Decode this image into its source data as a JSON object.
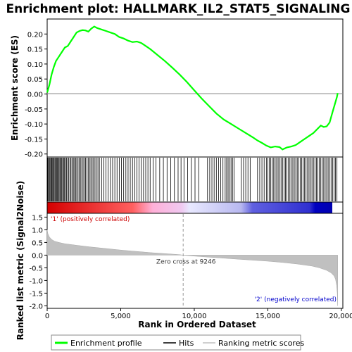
{
  "chart_data": {
    "type": "line",
    "title": "Enrichment plot: HALLMARK_IL2_STAT5_SIGNALING",
    "panels": {
      "enrichment": {
        "ylabel": "Enrichment score (ES)",
        "ylim": [
          -0.21,
          0.25
        ],
        "yticks": [
          "0.20",
          "0.15",
          "0.10",
          "0.05",
          "0.00",
          "-0.05",
          "-0.10",
          "-0.15",
          "-0.20"
        ],
        "ytick_values": [
          0.2,
          0.15,
          0.1,
          0.05,
          0.0,
          -0.05,
          -0.1,
          -0.15,
          -0.2
        ],
        "series": [
          {
            "name": "Enrichment profile",
            "color": "#00ff00",
            "x": [
              0,
              150,
              300,
              450,
              600,
              800,
              1000,
              1200,
              1400,
              1600,
              1800,
              2000,
              2200,
              2400,
              2600,
              2800,
              3000,
              3200,
              3400,
              3700,
              4000,
              4300,
              4600,
              4900,
              5200,
              5500,
              5800,
              6100,
              6400,
              6700,
              7000,
              7500,
              8000,
              8500,
              9000,
              9500,
              10000,
              10500,
              11000,
              11500,
              12000,
              12500,
              13000,
              13500,
              14000,
              14300,
              14600,
              14900,
              15200,
              15500,
              15800,
              16000,
              16300,
              16600,
              16900,
              17200,
              17500,
              17800,
              18100,
              18400,
              18600,
              18800,
              19000,
              19200,
              19400,
              19550,
              19700,
              19750
            ],
            "y": [
              0.005,
              0.03,
              0.065,
              0.09,
              0.11,
              0.125,
              0.14,
              0.155,
              0.16,
              0.175,
              0.19,
              0.205,
              0.21,
              0.213,
              0.212,
              0.208,
              0.218,
              0.225,
              0.22,
              0.215,
              0.21,
              0.205,
              0.2,
              0.19,
              0.185,
              0.178,
              0.173,
              0.175,
              0.17,
              0.16,
              0.15,
              0.13,
              0.11,
              0.088,
              0.065,
              0.04,
              0.012,
              -0.015,
              -0.04,
              -0.065,
              -0.085,
              -0.1,
              -0.115,
              -0.13,
              -0.145,
              -0.155,
              -0.163,
              -0.172,
              -0.178,
              -0.175,
              -0.177,
              -0.185,
              -0.178,
              -0.175,
              -0.17,
              -0.16,
              -0.15,
              -0.14,
              -0.13,
              -0.115,
              -0.105,
              -0.11,
              -0.108,
              -0.095,
              -0.06,
              -0.035,
              -0.01,
              0.003
            ]
          }
        ]
      },
      "hits": {
        "legend": "Hits",
        "positions": [
          40,
          90,
          150,
          200,
          260,
          310,
          370,
          420,
          470,
          530,
          580,
          640,
          700,
          760,
          810,
          870,
          930,
          990,
          1050,
          1120,
          1180,
          1250,
          1320,
          1400,
          1470,
          1550,
          1620,
          1700,
          1780,
          1860,
          1930,
          2010,
          2100,
          2180,
          2260,
          2350,
          2440,
          2520,
          2610,
          2700,
          2790,
          2880,
          2970,
          3060,
          3150,
          3250,
          3350,
          3450,
          3550,
          3700,
          3850,
          4000,
          4150,
          4300,
          4450,
          4600,
          4750,
          4900,
          5050,
          5200,
          5350,
          5500,
          5650,
          5800,
          5950,
          6100,
          6250,
          6400,
          6550,
          6700,
          6850,
          7000,
          7200,
          7400,
          7650,
          7900,
          8150,
          8400,
          8650,
          8900,
          9100,
          9300,
          9550,
          9800,
          10050,
          10300,
          10900,
          11050,
          11200,
          11350,
          11500,
          11650,
          11800,
          11950,
          12100,
          12200,
          12300,
          12400,
          12500,
          12600,
          12700,
          13200,
          13350,
          13500,
          13650,
          13800,
          14300,
          14450,
          14600,
          14750,
          14900,
          15000,
          15100,
          15200,
          15300,
          15400,
          15500,
          15600,
          15700,
          15800,
          15900,
          16000,
          16100,
          16200,
          16300,
          16400,
          16500,
          16600,
          16700,
          16800,
          16900,
          17000,
          17100,
          17200,
          17300,
          17400,
          17500,
          17600,
          17700,
          17800,
          17900,
          18000,
          18100,
          18200,
          18300,
          18400,
          18500,
          18600,
          18700,
          18800,
          18900,
          19000,
          19100,
          19200,
          19300,
          19400,
          19500,
          19600,
          19700
        ]
      },
      "ranked_metric": {
        "ylabel": "Ranked list metric (Signal2Noise)",
        "xlabel": "Rank in Ordered Dataset",
        "legend": "Ranking metric scores",
        "ylim": [
          -2.1,
          1.65
        ],
        "yticks": [
          "1.5",
          "1.0",
          "0.5",
          "0.0",
          "-0.5",
          "-1.0",
          "-1.5",
          "-2.0"
        ],
        "ytick_values": [
          1.5,
          1.0,
          0.5,
          0.0,
          -0.5,
          -1.0,
          -1.5,
          -2.0
        ],
        "xlim": [
          0,
          20100
        ],
        "xticks": [
          "0",
          "5,000",
          "10,000",
          "15,000",
          "20,000"
        ],
        "xtick_values": [
          0,
          5000,
          10000,
          15000,
          20000
        ],
        "profile_x": [
          0,
          50,
          150,
          300,
          500,
          800,
          1200,
          2000,
          3000,
          4000,
          5000,
          6000,
          7000,
          8000,
          9000,
          9246,
          10000,
          11000,
          12000,
          13000,
          14000,
          15000,
          16000,
          17000,
          18000,
          18500,
          19000,
          19300,
          19500,
          19600,
          19680,
          19720,
          19750
        ],
        "profile_y": [
          1.0,
          0.85,
          0.72,
          0.62,
          0.55,
          0.5,
          0.45,
          0.39,
          0.32,
          0.26,
          0.2,
          0.15,
          0.1,
          0.06,
          0.02,
          0.0,
          -0.04,
          -0.08,
          -0.12,
          -0.16,
          -0.2,
          -0.24,
          -0.29,
          -0.35,
          -0.43,
          -0.5,
          -0.6,
          -0.7,
          -0.82,
          -0.95,
          -1.2,
          -1.5,
          -2.0
        ],
        "zero_cross_label": "Zero cross at 9246",
        "zero_cross": 9246,
        "positive_label": "'1' (positively correlated)",
        "negative_label": "'2' (negatively correlated)"
      }
    },
    "legend": {
      "placement": "bottom",
      "items": [
        "Enrichment profile",
        "Hits",
        "Ranking metric scores"
      ]
    },
    "colors": {
      "profile": "#00ff00",
      "hits": "#000000",
      "metric_fill": "#c0c0c0",
      "positive": "#ff0000",
      "negative": "#0000ff"
    }
  }
}
